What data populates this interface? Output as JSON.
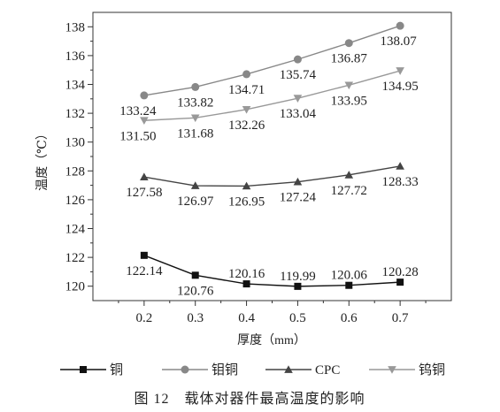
{
  "chart_data": {
    "type": "line",
    "caption": "图 12　载体对器件最高温度的影响",
    "xlabel": "厚度（mm）",
    "ylabel": "温度（℃）",
    "x": [
      0.2,
      0.3,
      0.4,
      0.5,
      0.6,
      0.7
    ],
    "x_tick_labels": [
      "0.2",
      "0.3",
      "0.4",
      "0.5",
      "0.6",
      "0.7"
    ],
    "xlim": [
      0.1,
      0.8
    ],
    "ylim": [
      119,
      139
    ],
    "y_ticks": [
      120,
      122,
      124,
      126,
      128,
      130,
      132,
      134,
      136,
      138
    ],
    "y_tick_labels": [
      "120",
      "122",
      "124",
      "126",
      "128",
      "130",
      "132",
      "134",
      "136",
      "138"
    ],
    "grid": false,
    "legend_position": "bottom",
    "series": [
      {
        "name": "铜",
        "marker": "square",
        "color": "#111111",
        "values": [
          122.14,
          120.76,
          120.16,
          119.99,
          120.06,
          120.28
        ],
        "labels": [
          "122.14",
          "120.76",
          "120.16",
          "119.99",
          "120.06",
          "120.28"
        ]
      },
      {
        "name": "钼铜",
        "marker": "circle",
        "color": "#888888",
        "values": [
          133.24,
          133.82,
          134.71,
          135.74,
          136.87,
          138.07
        ],
        "labels": [
          "133.24",
          "133.82",
          "134.71",
          "135.74",
          "136.87",
          "138.07"
        ]
      },
      {
        "name": "CPC",
        "marker": "triangle-up",
        "color": "#444444",
        "values": [
          127.58,
          126.97,
          126.95,
          127.24,
          127.72,
          128.33
        ],
        "labels": [
          "127.58",
          "126.97",
          "126.95",
          "127.24",
          "127.72",
          "128.33"
        ]
      },
      {
        "name": "钨铜",
        "marker": "triangle-down",
        "color": "#999999",
        "values": [
          131.5,
          131.68,
          132.26,
          133.04,
          133.95,
          134.95
        ],
        "labels": [
          "131.50",
          "131.68",
          "132.26",
          "133.04",
          "133.95",
          "134.95"
        ]
      }
    ]
  }
}
